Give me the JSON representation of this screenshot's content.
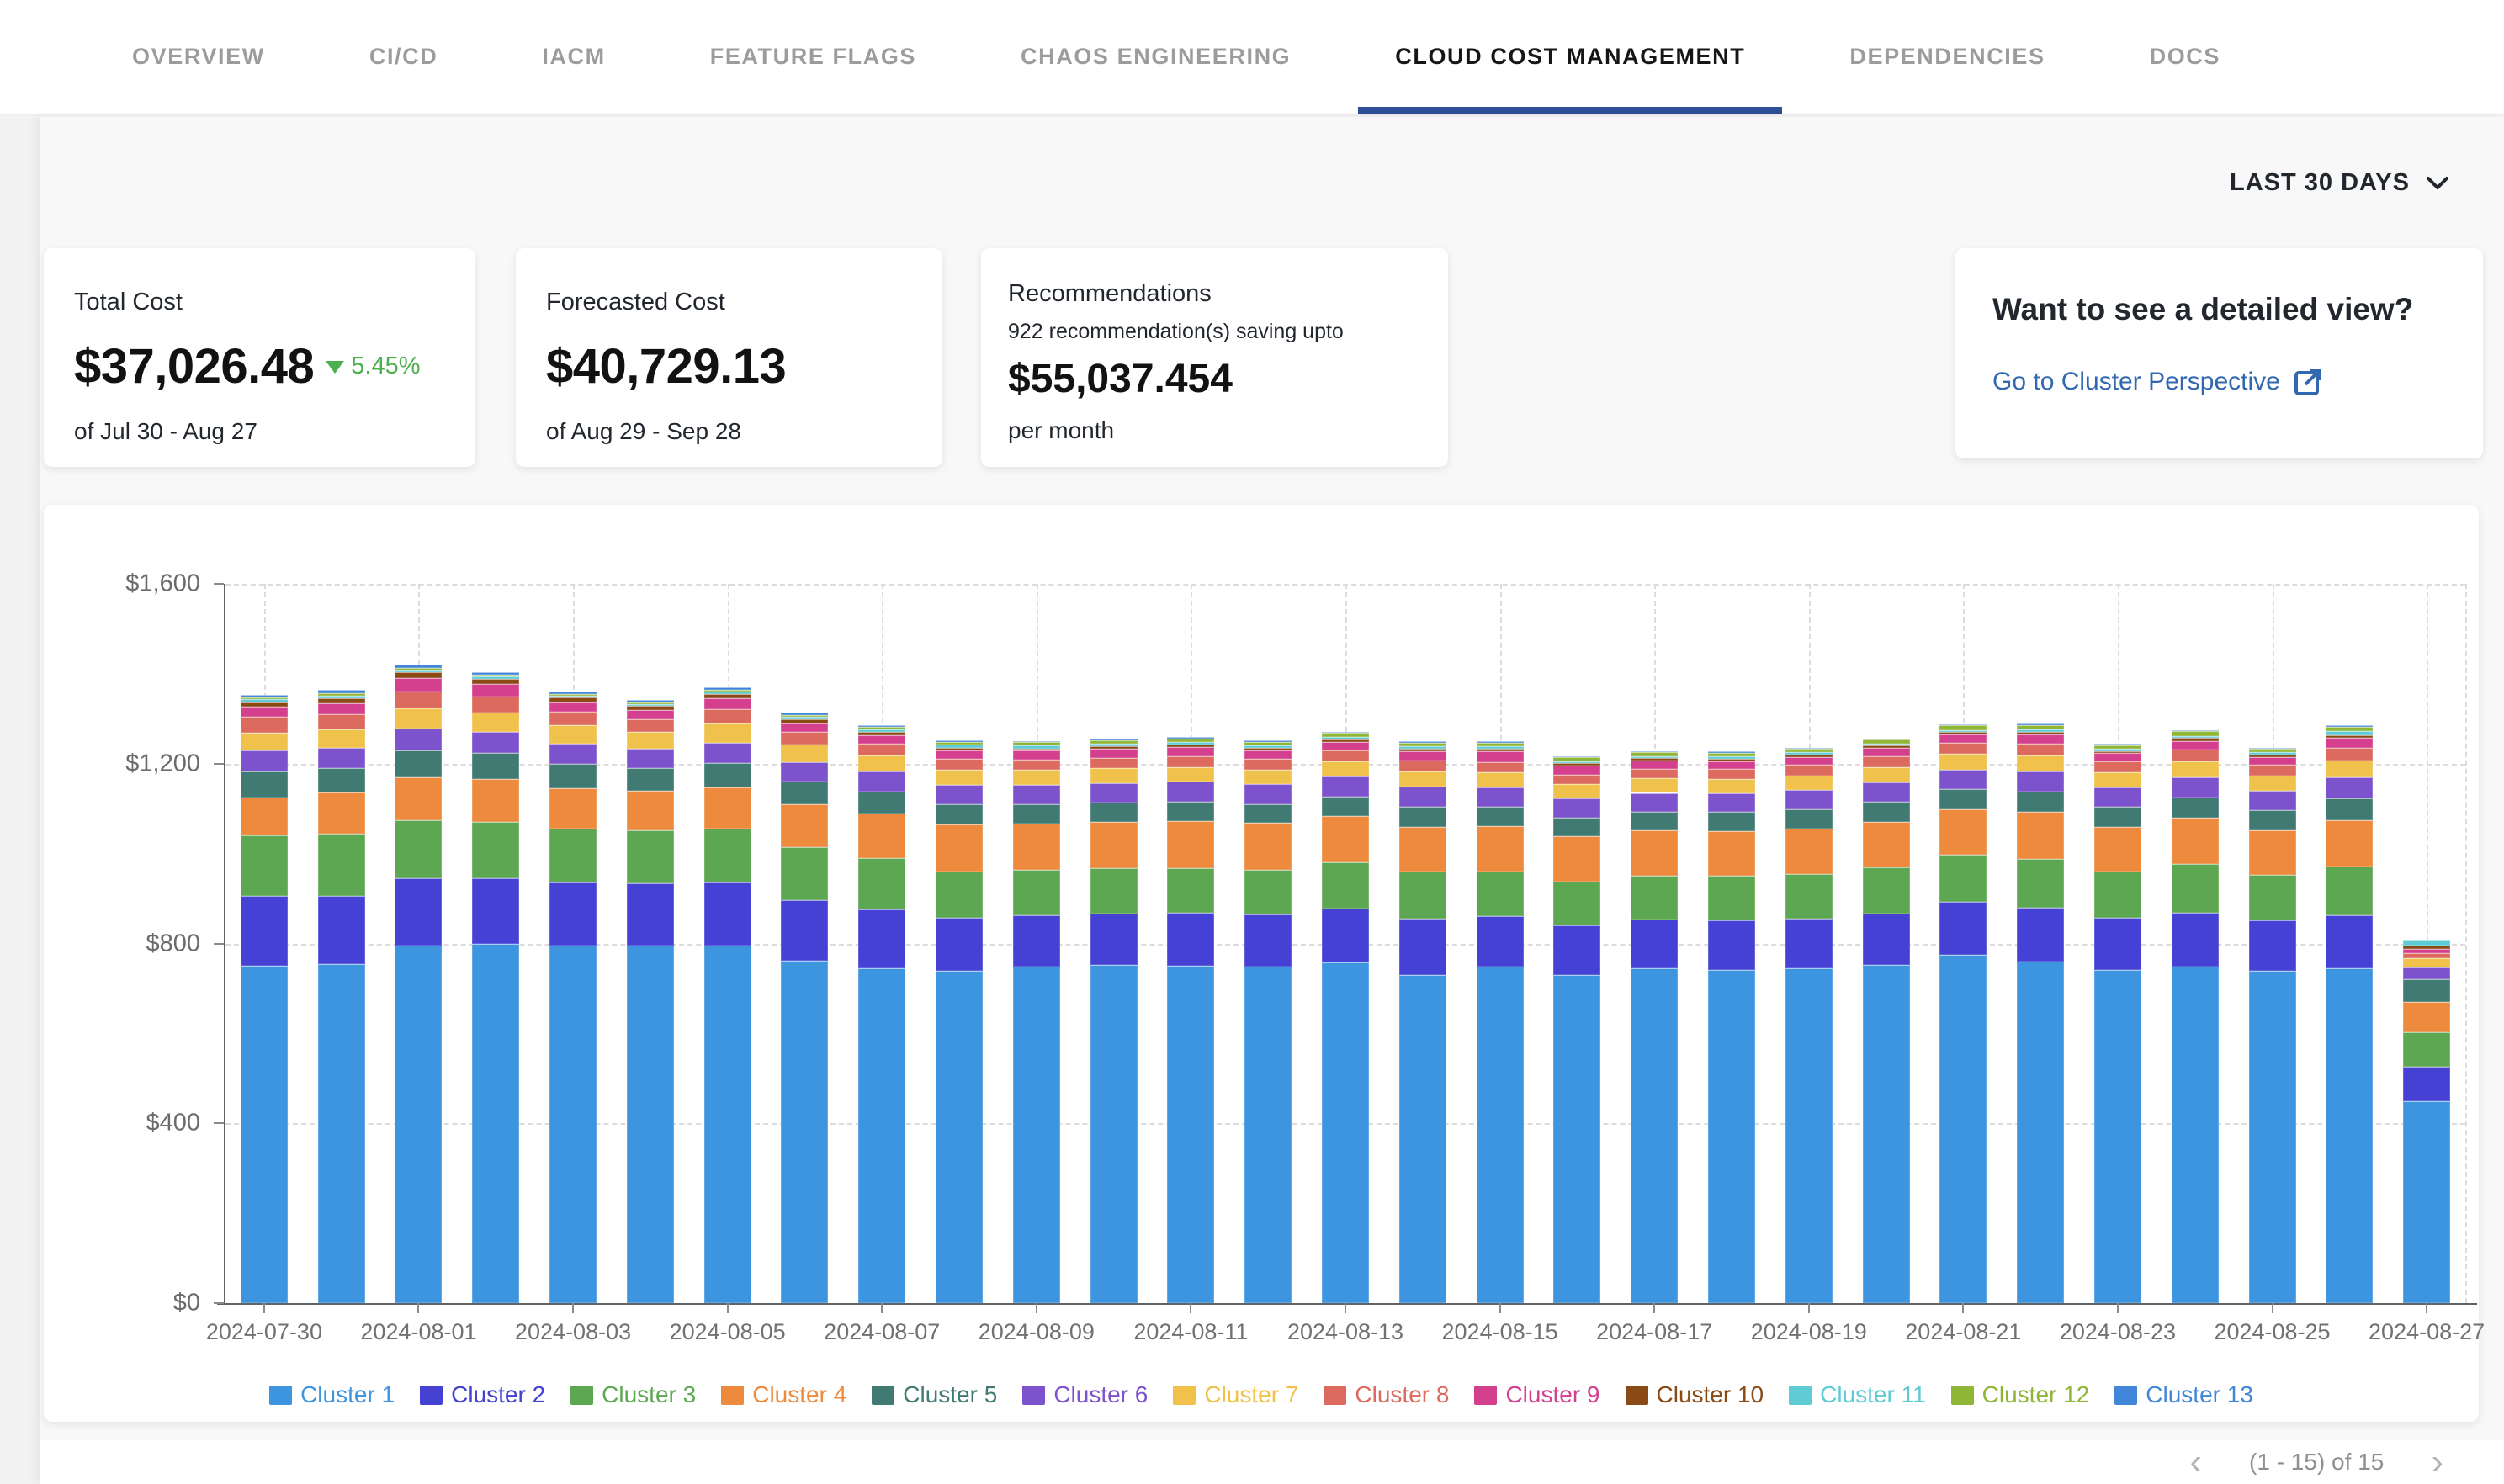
{
  "tabs": [
    {
      "label": "OVERVIEW",
      "active": false
    },
    {
      "label": "CI/CD",
      "active": false
    },
    {
      "label": "IACM",
      "active": false
    },
    {
      "label": "FEATURE FLAGS",
      "active": false
    },
    {
      "label": "CHAOS ENGINEERING",
      "active": false
    },
    {
      "label": "CLOUD COST MANAGEMENT",
      "active": true
    },
    {
      "label": "DEPENDENCIES",
      "active": false
    },
    {
      "label": "DOCS",
      "active": false
    }
  ],
  "time_range": {
    "label": "LAST 30 DAYS",
    "icon": "chevron-down-icon"
  },
  "cards": {
    "total_cost": {
      "title": "Total Cost",
      "value": "$37,026.48",
      "change": "5.45%",
      "change_direction": "down",
      "change_icon": "triangle-down-icon",
      "change_color": "#4db050",
      "period": "of Jul 30 - Aug 27"
    },
    "forecasted_cost": {
      "title": "Forecasted Cost",
      "value": "$40,729.13",
      "period": "of Aug 29 - Sep 28"
    },
    "recommendations": {
      "title": "Recommendations",
      "line": "922 recommendation(s) saving upto",
      "value": "$55,037.454",
      "suffix": "per month"
    },
    "detail_view": {
      "title": "Want to see a detailed view?",
      "link": "Go to Cluster Perspective",
      "link_icon": "external-link-icon",
      "link_color": "#3268af"
    }
  },
  "chart_data": {
    "type": "bar",
    "stacked": true,
    "ylabel": "",
    "xlabel": "",
    "ylim": [
      0,
      1600
    ],
    "y_ticks": [
      0,
      400,
      800,
      1200,
      1600
    ],
    "y_tick_labels": [
      "$0",
      "$400",
      "$800",
      "$1,200",
      "$1,600"
    ],
    "grid": "dashed",
    "legend_position": "bottom",
    "categories": [
      "2024-07-30",
      "2024-07-31",
      "2024-08-01",
      "2024-08-02",
      "2024-08-03",
      "2024-08-04",
      "2024-08-05",
      "2024-08-06",
      "2024-08-07",
      "2024-08-08",
      "2024-08-09",
      "2024-08-10",
      "2024-08-11",
      "2024-08-12",
      "2024-08-13",
      "2024-08-14",
      "2024-08-15",
      "2024-08-16",
      "2024-08-17",
      "2024-08-18",
      "2024-08-19",
      "2024-08-20",
      "2024-08-21",
      "2024-08-22",
      "2024-08-23",
      "2024-08-24",
      "2024-08-25",
      "2024-08-26",
      "2024-08-27"
    ],
    "labeled_ticks": [
      "2024-07-30",
      "2024-08-01",
      "2024-08-03",
      "2024-08-05",
      "2024-08-07",
      "2024-08-09",
      "2024-08-11",
      "2024-08-13",
      "2024-08-15",
      "2024-08-17",
      "2024-08-19",
      "2024-08-21",
      "2024-08-23",
      "2024-08-25",
      "2024-08-27"
    ],
    "series": [
      {
        "name": "Cluster 1",
        "color": "#3d95e0",
        "values": [
          750,
          755,
          795,
          800,
          795,
          795,
          795,
          762,
          745,
          740,
          748,
          752,
          750,
          748,
          758,
          730,
          748,
          730,
          745,
          742,
          745,
          752,
          775,
          760,
          742,
          748,
          740,
          745,
          449
        ]
      },
      {
        "name": "Cluster 2",
        "color": "#4441d4",
        "values": [
          155,
          150,
          150,
          145,
          140,
          138,
          140,
          135,
          130,
          118,
          115,
          115,
          118,
          116,
          120,
          125,
          112,
          110,
          108,
          110,
          110,
          115,
          118,
          120,
          115,
          120,
          112,
          118,
          77
        ]
      },
      {
        "name": "Cluster 3",
        "color": "#5ea752",
        "values": [
          135,
          140,
          130,
          125,
          120,
          118,
          120,
          118,
          115,
          102,
          100,
          100,
          100,
          100,
          102,
          105,
          100,
          98,
          98,
          98,
          100,
          102,
          105,
          108,
          103,
          108,
          100,
          108,
          77
        ]
      },
      {
        "name": "Cluster 4",
        "color": "#ee8a3d",
        "values": [
          85,
          90,
          95,
          95,
          90,
          88,
          92,
          95,
          100,
          105,
          104,
          104,
          105,
          104,
          104,
          100,
          102,
          100,
          100,
          100,
          100,
          102,
          100,
          104,
          100,
          103,
          100,
          104,
          67
        ]
      },
      {
        "name": "Cluster 5",
        "color": "#417a73",
        "values": [
          58,
          55,
          60,
          58,
          55,
          52,
          55,
          50,
          48,
          44,
          42,
          42,
          43,
          42,
          43,
          45,
          42,
          42,
          42,
          42,
          43,
          44,
          45,
          46,
          44,
          46,
          44,
          48,
          50
        ]
      },
      {
        "name": "Cluster 6",
        "color": "#7d53cd",
        "values": [
          46,
          45,
          48,
          47,
          45,
          42,
          45,
          44,
          45,
          44,
          44,
          44,
          44,
          44,
          44,
          44,
          43,
          42,
          42,
          42,
          43,
          44,
          44,
          45,
          43,
          44,
          43,
          46,
          26
        ]
      },
      {
        "name": "Cluster 7",
        "color": "#f0c24b",
        "values": [
          40,
          42,
          45,
          44,
          40,
          38,
          42,
          38,
          36,
          33,
          33,
          33,
          33,
          33,
          34,
          34,
          33,
          32,
          32,
          32,
          33,
          34,
          35,
          36,
          34,
          36,
          34,
          38,
          22
        ]
      },
      {
        "name": "Cluster 8",
        "color": "#dd6a5e",
        "values": [
          35,
          33,
          38,
          36,
          30,
          28,
          32,
          28,
          26,
          24,
          23,
          23,
          24,
          23,
          24,
          24,
          23,
          22,
          22,
          22,
          23,
          24,
          25,
          26,
          24,
          26,
          24,
          28,
          11
        ]
      },
      {
        "name": "Cluster 9",
        "color": "#d4408d",
        "values": [
          22,
          25,
          30,
          28,
          22,
          20,
          24,
          20,
          18,
          20,
          20,
          20,
          20,
          20,
          20,
          20,
          25,
          20,
          18,
          18,
          18,
          18,
          18,
          20,
          18,
          20,
          18,
          22,
          9
        ]
      },
      {
        "name": "Cluster 10",
        "color": "#8a4a16",
        "values": [
          10,
          11,
          12,
          11,
          10,
          9,
          10,
          8,
          7,
          6,
          5,
          5,
          5,
          5,
          5,
          6,
          5,
          5,
          5,
          5,
          5,
          5,
          5,
          6,
          5,
          6,
          5,
          6,
          7
        ]
      },
      {
        "name": "Cluster 11",
        "color": "#5fcbd4",
        "values": [
          8,
          6,
          5,
          5,
          5,
          5,
          6,
          6,
          6,
          6,
          6,
          6,
          6,
          6,
          6,
          6,
          6,
          5,
          5,
          5,
          5,
          5,
          5,
          5,
          5,
          5,
          5,
          10,
          13
        ]
      },
      {
        "name": "Cluster 12",
        "color": "#8fb636",
        "values": [
          3,
          4,
          4,
          4,
          3,
          3,
          3,
          4,
          5,
          7,
          8,
          8,
          8,
          8,
          8,
          8,
          8,
          8,
          8,
          8,
          8,
          8,
          10,
          10,
          8,
          10,
          8,
          8,
          0
        ]
      },
      {
        "name": "Cluster 13",
        "color": "#4286d9",
        "values": [
          6,
          8,
          8,
          6,
          5,
          5,
          6,
          5,
          4,
          3,
          3,
          3,
          3,
          3,
          3,
          3,
          3,
          3,
          3,
          3,
          3,
          3,
          3,
          3,
          3,
          3,
          3,
          4,
          0
        ]
      }
    ]
  },
  "pagination": {
    "text": "(1 - 15) of 15",
    "prev_icon": "chevron-left-icon",
    "next_icon": "chevron-right-icon"
  }
}
